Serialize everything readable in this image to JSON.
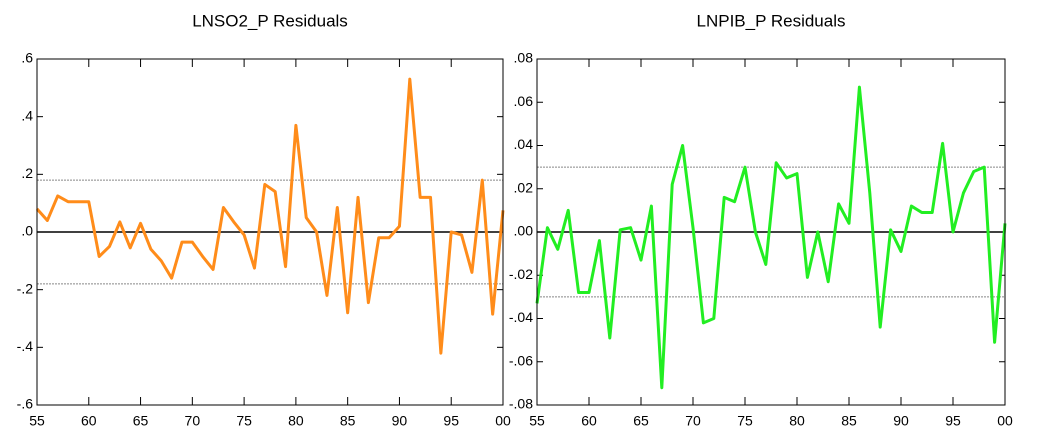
{
  "chart_data": [
    {
      "type": "line",
      "title": "LNSO2_P Residuals",
      "color": "#ff8c1a",
      "x": [
        1955,
        1956,
        1957,
        1958,
        1959,
        1960,
        1961,
        1962,
        1963,
        1964,
        1965,
        1966,
        1967,
        1968,
        1969,
        1970,
        1971,
        1972,
        1973,
        1974,
        1975,
        1976,
        1977,
        1978,
        1979,
        1980,
        1981,
        1982,
        1983,
        1984,
        1985,
        1986,
        1987,
        1988,
        1989,
        1990,
        1991,
        1992,
        1993,
        1994,
        1995,
        1996,
        1997,
        1998,
        1999,
        2000
      ],
      "values": [
        0.08,
        0.04,
        0.125,
        0.105,
        0.105,
        0.105,
        -0.085,
        -0.05,
        0.035,
        -0.055,
        0.03,
        -0.06,
        -0.1,
        -0.16,
        -0.035,
        -0.035,
        -0.085,
        -0.13,
        0.085,
        0.035,
        -0.01,
        -0.125,
        0.165,
        0.14,
        -0.12,
        0.37,
        0.05,
        0.0,
        -0.22,
        0.085,
        -0.28,
        0.12,
        -0.245,
        -0.02,
        -0.02,
        0.02,
        0.53,
        0.12,
        0.12,
        -0.42,
        0.0,
        -0.01,
        -0.14,
        0.18,
        -0.285,
        0.075
      ],
      "xlim": [
        1955,
        2000
      ],
      "xticks": [
        {
          "value": 1955,
          "label": "55"
        },
        {
          "value": 1960,
          "label": "60"
        },
        {
          "value": 1965,
          "label": "65"
        },
        {
          "value": 1970,
          "label": "70"
        },
        {
          "value": 1975,
          "label": "75"
        },
        {
          "value": 1980,
          "label": "80"
        },
        {
          "value": 1985,
          "label": "85"
        },
        {
          "value": 1990,
          "label": "90"
        },
        {
          "value": 1995,
          "label": "95"
        },
        {
          "value": 2000,
          "label": "00"
        }
      ],
      "ylim": [
        -0.6,
        0.6
      ],
      "yticks": [
        {
          "value": -0.6,
          "label": "-.6"
        },
        {
          "value": -0.4,
          "label": "-.4"
        },
        {
          "value": -0.2,
          "label": "-.2"
        },
        {
          "value": 0,
          "label": ".0"
        },
        {
          "value": 0.2,
          "label": ".2"
        },
        {
          "value": 0.4,
          "label": ".4"
        },
        {
          "value": 0.6,
          "label": ".6"
        }
      ],
      "reference_lines": [
        {
          "value": 0,
          "style": "solid"
        },
        {
          "value": 0.18,
          "style": "dashed"
        },
        {
          "value": -0.18,
          "style": "dashed"
        }
      ]
    },
    {
      "type": "line",
      "title": "LNPIB_P Residuals",
      "color": "#22ee22",
      "x": [
        1955,
        1956,
        1957,
        1958,
        1959,
        1960,
        1961,
        1962,
        1963,
        1964,
        1965,
        1966,
        1967,
        1968,
        1969,
        1970,
        1971,
        1972,
        1973,
        1974,
        1975,
        1976,
        1977,
        1978,
        1979,
        1980,
        1981,
        1982,
        1983,
        1984,
        1985,
        1986,
        1987,
        1988,
        1989,
        1990,
        1991,
        1992,
        1993,
        1994,
        1995,
        1996,
        1997,
        1998,
        1999,
        2000
      ],
      "values": [
        -0.033,
        0.002,
        -0.008,
        0.01,
        -0.028,
        -0.028,
        -0.004,
        -0.049,
        0.001,
        0.002,
        -0.013,
        0.012,
        -0.072,
        0.022,
        0.04,
        0.002,
        -0.042,
        -0.04,
        0.016,
        0.014,
        0.03,
        0.0,
        -0.015,
        0.032,
        0.025,
        0.027,
        -0.021,
        0.0,
        -0.023,
        0.013,
        0.004,
        0.067,
        0.018,
        -0.044,
        0.001,
        -0.009,
        0.012,
        0.009,
        0.009,
        0.041,
        0.0,
        0.018,
        0.028,
        0.03,
        -0.051,
        0.004
      ],
      "xlim": [
        1955,
        2000
      ],
      "xticks": [
        {
          "value": 1955,
          "label": "55"
        },
        {
          "value": 1960,
          "label": "60"
        },
        {
          "value": 1965,
          "label": "65"
        },
        {
          "value": 1970,
          "label": "70"
        },
        {
          "value": 1975,
          "label": "75"
        },
        {
          "value": 1980,
          "label": "80"
        },
        {
          "value": 1985,
          "label": "85"
        },
        {
          "value": 1990,
          "label": "90"
        },
        {
          "value": 1995,
          "label": "95"
        },
        {
          "value": 2000,
          "label": "00"
        }
      ],
      "ylim": [
        -0.08,
        0.08
      ],
      "yticks": [
        {
          "value": -0.08,
          "label": "-.08"
        },
        {
          "value": -0.06,
          "label": "-.06"
        },
        {
          "value": -0.04,
          "label": "-.04"
        },
        {
          "value": -0.02,
          "label": "-.02"
        },
        {
          "value": 0,
          "label": ".00"
        },
        {
          "value": 0.02,
          "label": ".02"
        },
        {
          "value": 0.04,
          "label": ".04"
        },
        {
          "value": 0.06,
          "label": ".06"
        },
        {
          "value": 0.08,
          "label": ".08"
        }
      ],
      "reference_lines": [
        {
          "value": 0,
          "style": "solid"
        },
        {
          "value": 0.03,
          "style": "dashed"
        },
        {
          "value": -0.03,
          "style": "dashed"
        }
      ]
    }
  ]
}
